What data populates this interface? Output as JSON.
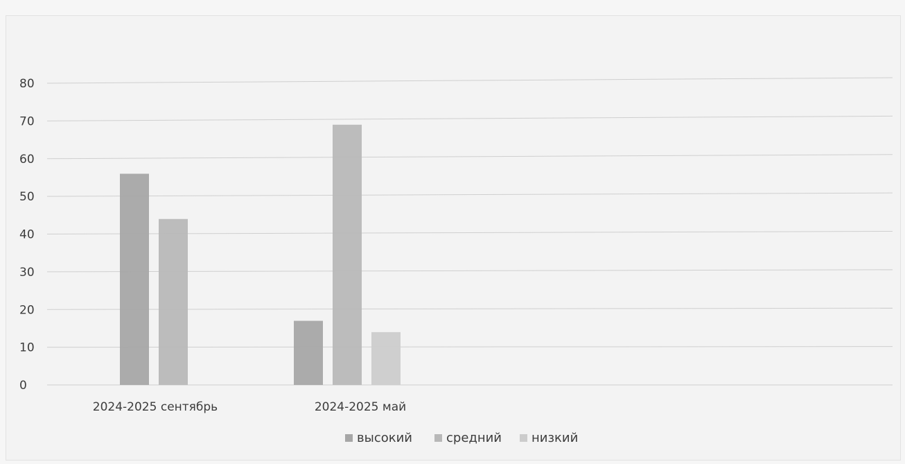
{
  "chart_data": {
    "type": "bar",
    "categories": [
      "2024-2025 сентябрь",
      "2024-2025 май"
    ],
    "series": [
      {
        "name": "высокий",
        "values": [
          56,
          17
        ],
        "color": "#a6a6a6"
      },
      {
        "name": "средний",
        "values": [
          44,
          69
        ],
        "color": "#b8b8b8"
      },
      {
        "name": "низкий",
        "values": [
          null,
          14
        ],
        "color": "#cccccc"
      }
    ],
    "ylim": [
      0,
      80
    ],
    "yticks": [
      0,
      10,
      20,
      30,
      40,
      50,
      60,
      70,
      80
    ],
    "grid": true,
    "legend_position": "bottom",
    "title": "",
    "xlabel": "",
    "ylabel": ""
  }
}
